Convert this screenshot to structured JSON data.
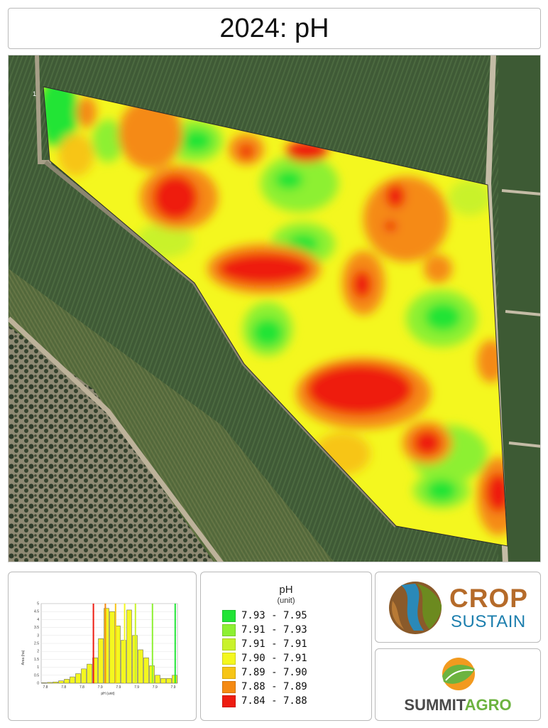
{
  "title": "2024: pH",
  "legend": {
    "title": "pH",
    "unit": "(unit)",
    "items": [
      {
        "range": "7.93 - 7.95",
        "color": "#21e436"
      },
      {
        "range": "7.91 - 7.93",
        "color": "#8df032"
      },
      {
        "range": "7.91 - 7.91",
        "color": "#c9f22b"
      },
      {
        "range": "7.90 - 7.91",
        "color": "#f4f71f"
      },
      {
        "range": "7.89 - 7.90",
        "color": "#f7c516"
      },
      {
        "range": "7.88 - 7.89",
        "color": "#f58a12"
      },
      {
        "range": "7.84 - 7.88",
        "color": "#ee1c11"
      }
    ]
  },
  "histogram": {
    "ylabel": "Area (ha)",
    "xlabel": "pH (unit)",
    "y_ticks": [
      "5",
      "4.5",
      "4",
      "3.5",
      "3",
      "2.5",
      "2",
      "1.5",
      "1",
      "0.5",
      "0"
    ],
    "x_ticks": [
      "7.8",
      "7.8",
      "7.8",
      "7.9",
      "7.9",
      "7.9",
      "7.9",
      "7.9"
    ],
    "bar_values": [
      0.03,
      0.05,
      0.08,
      0.15,
      0.25,
      0.4,
      0.6,
      0.9,
      1.2,
      1.6,
      2.8,
      4.7,
      4.5,
      3.6,
      2.7,
      4.6,
      3.0,
      2.1,
      1.6,
      1.1,
      0.5,
      0.3,
      0.3,
      0.5
    ],
    "threshold_lines": [
      {
        "x": 9.2,
        "color": "#ee1c11"
      },
      {
        "x": 11.3,
        "color": "#f58a12"
      },
      {
        "x": 13.1,
        "color": "#f7c516"
      },
      {
        "x": 14.7,
        "color": "#f4f71f"
      },
      {
        "x": 16.6,
        "color": "#c9f22b"
      },
      {
        "x": 19.6,
        "color": "#8df032"
      },
      {
        "x": 23.6,
        "color": "#21e436"
      }
    ],
    "ylim": [
      0,
      5
    ]
  },
  "logos": {
    "crop_line1": "CROP",
    "crop_line2": "SUSTAIN",
    "summit_part1": "SUMMIT",
    "summit_part2": "AGRO"
  },
  "map_marker": "1"
}
